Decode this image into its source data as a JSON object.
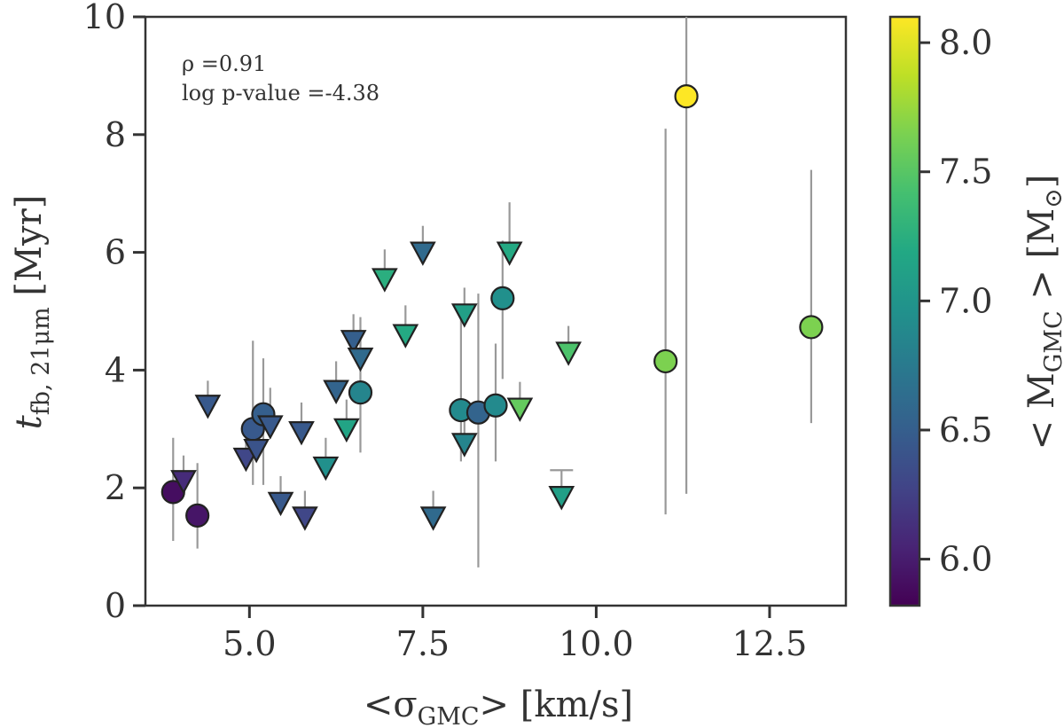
{
  "chart_data": {
    "type": "scatter",
    "xlabel_pre": "<σ",
    "xlabel_sub": "GMC",
    "xlabel_post": "> [km/s]",
    "ylabel_main": "t",
    "ylabel_sub": "fb, 21μm",
    "ylabel_post": " [Myr]",
    "xlim": [
      3.5,
      13.6
    ],
    "ylim": [
      0,
      10
    ],
    "xticks": [
      5.0,
      7.5,
      10.0,
      12.5
    ],
    "xtick_labels": [
      "5.0",
      "7.5",
      "10.0",
      "12.5"
    ],
    "yticks": [
      0,
      2,
      4,
      6,
      8,
      10
    ],
    "ytick_labels": [
      "0",
      "2",
      "4",
      "6",
      "8",
      "10"
    ],
    "annotation_rho": "ρ =0.91",
    "annotation_p": "log p-value =-4.38",
    "colorbar": {
      "label_pre": "< M",
      "label_sub": "GMC",
      "label_post": " > [M",
      "label_sun": "⊙",
      "label_end": "]",
      "range": [
        5.82,
        8.1
      ],
      "ticks": [
        6.0,
        6.5,
        7.0,
        7.5,
        8.0
      ],
      "tick_labels": [
        "6.0",
        "6.5",
        "7.0",
        "7.5",
        "8.0"
      ],
      "colormap": "viridis"
    },
    "points": [
      {
        "x": 3.9,
        "y": 1.93,
        "marker": "circle",
        "c": 5.9,
        "yerr_lo": 1.1,
        "yerr_hi": 2.85
      },
      {
        "x": 4.25,
        "y": 1.53,
        "marker": "circle",
        "c": 5.95,
        "yerr_lo": 0.97,
        "yerr_hi": 2.42
      },
      {
        "x": 4.05,
        "y": 2.12,
        "marker": "triangle",
        "c": 6.1,
        "yerr_lo": null,
        "yerr_hi": 2.55
      },
      {
        "x": 4.4,
        "y": 3.4,
        "marker": "triangle",
        "c": 6.45,
        "yerr_lo": null,
        "yerr_hi": 3.82
      },
      {
        "x": 4.95,
        "y": 2.5,
        "marker": "triangle",
        "c": 6.3,
        "yerr_lo": null,
        "yerr_hi": 3.0
      },
      {
        "x": 5.05,
        "y": 3.0,
        "marker": "circle",
        "c": 6.45,
        "yerr_lo": 2.05,
        "yerr_hi": 4.5
      },
      {
        "x": 5.1,
        "y": 2.65,
        "marker": "triangle",
        "c": 6.4,
        "yerr_lo": null,
        "yerr_hi": 3.1
      },
      {
        "x": 5.2,
        "y": 3.25,
        "marker": "circle",
        "c": 6.5,
        "yerr_lo": 2.05,
        "yerr_hi": 4.2
      },
      {
        "x": 5.3,
        "y": 3.05,
        "marker": "triangle",
        "c": 6.45,
        "yerr_lo": null,
        "yerr_hi": 3.7
      },
      {
        "x": 5.45,
        "y": 1.75,
        "marker": "triangle",
        "c": 6.45,
        "yerr_lo": null,
        "yerr_hi": 2.2
      },
      {
        "x": 5.75,
        "y": 2.95,
        "marker": "triangle",
        "c": 6.45,
        "yerr_lo": null,
        "yerr_hi": 3.45
      },
      {
        "x": 5.8,
        "y": 1.5,
        "marker": "triangle",
        "c": 6.3,
        "yerr_lo": null,
        "yerr_hi": 1.95
      },
      {
        "x": 6.1,
        "y": 2.35,
        "marker": "triangle",
        "c": 6.95,
        "yerr_lo": null,
        "yerr_hi": 2.85
      },
      {
        "x": 6.25,
        "y": 3.65,
        "marker": "triangle",
        "c": 6.55,
        "yerr_lo": null,
        "yerr_hi": 4.15
      },
      {
        "x": 6.4,
        "y": 3.0,
        "marker": "triangle",
        "c": 7.15,
        "yerr_lo": null,
        "yerr_hi": 3.5
      },
      {
        "x": 6.5,
        "y": 4.5,
        "marker": "triangle",
        "c": 6.5,
        "yerr_lo": null,
        "yerr_hi": 4.95
      },
      {
        "x": 6.6,
        "y": 4.2,
        "marker": "triangle",
        "c": 6.6,
        "yerr_lo": null,
        "yerr_hi": 4.7
      },
      {
        "x": 6.6,
        "y": 3.62,
        "marker": "circle",
        "c": 6.85,
        "yerr_lo": 2.6,
        "yerr_hi": 4.9
      },
      {
        "x": 6.95,
        "y": 5.55,
        "marker": "triangle",
        "c": 7.25,
        "yerr_lo": null,
        "yerr_hi": 6.05
      },
      {
        "x": 7.25,
        "y": 4.6,
        "marker": "triangle",
        "c": 7.2,
        "yerr_lo": null,
        "yerr_hi": 5.1
      },
      {
        "x": 7.5,
        "y": 6.0,
        "marker": "triangle",
        "c": 6.6,
        "yerr_lo": null,
        "yerr_hi": 6.45
      },
      {
        "x": 7.65,
        "y": 1.5,
        "marker": "triangle",
        "c": 6.6,
        "yerr_lo": null,
        "yerr_hi": 1.95
      },
      {
        "x": 8.1,
        "y": 4.95,
        "marker": "triangle",
        "c": 7.1,
        "yerr_lo": null,
        "yerr_hi": 5.4
      },
      {
        "x": 8.05,
        "y": 3.32,
        "marker": "circle",
        "c": 6.9,
        "yerr_lo": 2.45,
        "yerr_hi": 4.9
      },
      {
        "x": 8.1,
        "y": 2.75,
        "marker": "triangle",
        "c": 6.85,
        "yerr_lo": null,
        "yerr_hi": 3.2
      },
      {
        "x": 8.3,
        "y": 3.28,
        "marker": "circle",
        "c": 6.55,
        "yerr_lo": 0.65,
        "yerr_hi": 5.3
      },
      {
        "x": 8.55,
        "y": 3.4,
        "marker": "circle",
        "c": 6.9,
        "yerr_lo": 2.45,
        "yerr_hi": 4.45
      },
      {
        "x": 8.65,
        "y": 5.22,
        "marker": "circle",
        "c": 6.95,
        "yerr_lo": 3.85,
        "yerr_hi": 6.2
      },
      {
        "x": 8.75,
        "y": 6.0,
        "marker": "triangle",
        "c": 7.2,
        "yerr_lo": null,
        "yerr_hi": 6.85
      },
      {
        "x": 8.9,
        "y": 3.35,
        "marker": "triangle",
        "c": 7.55,
        "yerr_lo": null,
        "yerr_hi": 3.8
      },
      {
        "x": 9.5,
        "y": 1.85,
        "marker": "triangle",
        "c": 7.1,
        "yerr_lo": null,
        "yerr_hi": 2.3
      },
      {
        "x": 9.6,
        "y": 4.3,
        "marker": "triangle",
        "c": 7.45,
        "yerr_lo": null,
        "yerr_hi": 4.75
      },
      {
        "x": 11.0,
        "y": 4.15,
        "marker": "circle",
        "c": 7.65,
        "yerr_lo": 1.55,
        "yerr_hi": 8.1
      },
      {
        "x": 11.3,
        "y": 8.65,
        "marker": "circle",
        "c": 8.1,
        "yerr_lo": 1.9,
        "yerr_hi": 10.0
      },
      {
        "x": 13.1,
        "y": 4.73,
        "marker": "circle",
        "c": 7.65,
        "yerr_lo": 3.1,
        "yerr_hi": 7.4
      }
    ]
  }
}
